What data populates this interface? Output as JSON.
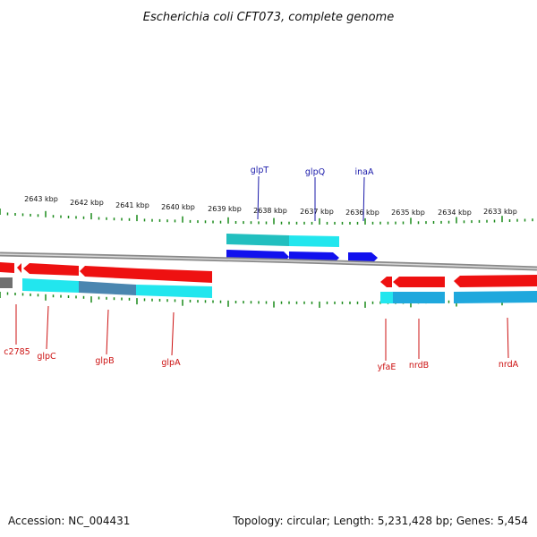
{
  "title": "Escherichia coli CFT073, complete genome",
  "footer": {
    "accession": "Accession: NC_004431",
    "topology": "Topology: circular; Length: 5,231,428 bp; Genes: 5,454"
  },
  "colors": {
    "tick": "#1a8a1a",
    "backbone": "#8a8a8a",
    "reverse_cds": "#ee1111",
    "forward_cds": "#1111ee",
    "label_forward": "#1a1aaa",
    "label_reverse": "#cc1111",
    "cyan": "#22e6ee",
    "teal": "#22bfbf",
    "steel": "#4a86b0",
    "gray_block": "#707070"
  },
  "scale_labels": [
    "2643 kbp",
    "2642 kbp",
    "2641 kbp",
    "2640 kbp",
    "2639 kbp",
    "2638 kbp",
    "2637 kbp",
    "2636 kbp",
    "2635 kbp",
    "2634 kbp",
    "2633 kbp"
  ],
  "genes_top": [
    "glpT",
    "glpQ",
    "inaA"
  ],
  "genes_bottom": [
    "c2785",
    "glpC",
    "glpB",
    "glpA",
    "yfaE",
    "nrdB",
    "nrdA"
  ]
}
